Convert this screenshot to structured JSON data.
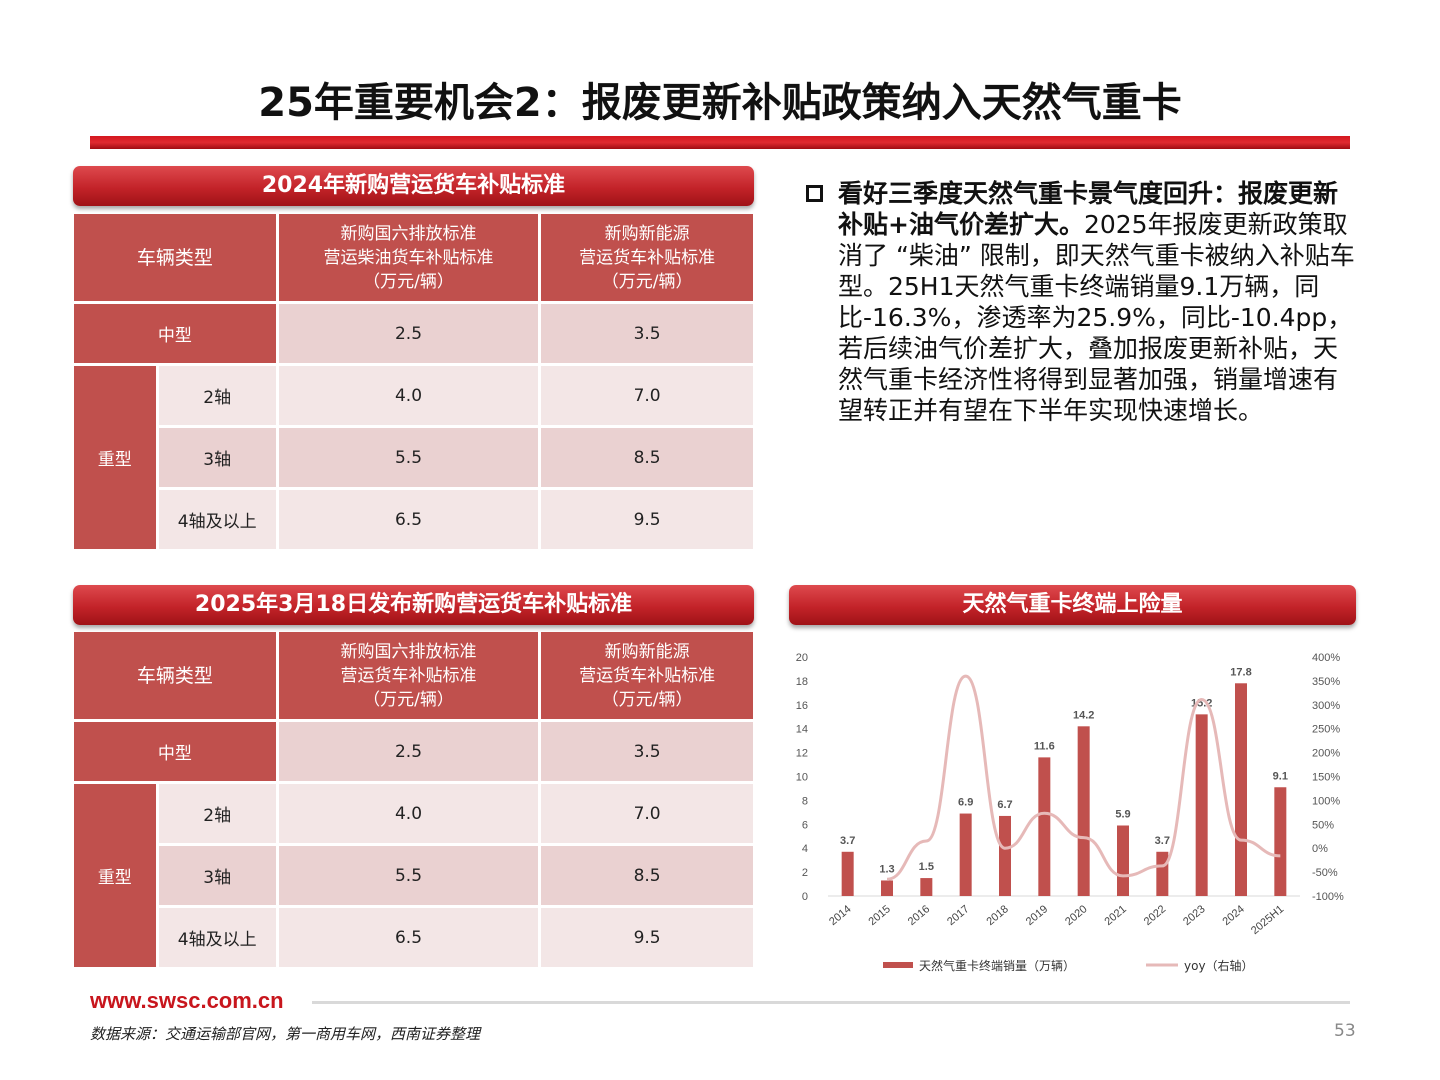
{
  "title": "25年重要机会2：报废更新补贴政策纳入天然气重卡",
  "table1": {
    "banner": "2024年新购营运货车补贴标准",
    "col0": "车辆类型",
    "col1": [
      "新购国六排放标准",
      "营运柴油货车补贴标准",
      "（万元/辆）"
    ],
    "col2": [
      "新购新能源",
      "营运货车补贴标准",
      "（万元/辆）"
    ],
    "rows": {
      "medium": {
        "label": "中型",
        "v1": "2.5",
        "v2": "3.5"
      },
      "heavy": "重型",
      "axle2": {
        "label": "2轴",
        "v1": "4.0",
        "v2": "7.0"
      },
      "axle3": {
        "label": "3轴",
        "v1": "5.5",
        "v2": "8.5"
      },
      "axle4": {
        "label": "4轴及以上",
        "v1": "6.5",
        "v2": "9.5"
      }
    }
  },
  "table2": {
    "banner": "2025年3月18日发布新购营运货车补贴标准",
    "col0": "车辆类型",
    "col1": [
      "新购国六排放标准",
      "营运货车补贴标准",
      "（万元/辆）"
    ],
    "col2": [
      "新购新能源",
      "营运货车补贴标准",
      "（万元/辆）"
    ],
    "rows": {
      "medium": {
        "label": "中型",
        "v1": "2.5",
        "v2": "3.5"
      },
      "heavy": "重型",
      "axle2": {
        "label": "2轴",
        "v1": "4.0",
        "v2": "7.0"
      },
      "axle3": {
        "label": "3轴",
        "v1": "5.5",
        "v2": "8.5"
      },
      "axle4": {
        "label": "4轴及以上",
        "v1": "6.5",
        "v2": "9.5"
      }
    }
  },
  "bullet": {
    "bold": "看好三季度天然气重卡景气度回升：报废更新补贴+油气价差扩大。",
    "text": "2025年报废更新政策取消了 “柴油” 限制，即天然气重卡被纳入补贴车型。25H1天然气重卡终端销量9.1万辆，同比-16.3%，渗透率为25.9%，同比-10.4pp，若后续油气价差扩大，叠加报废更新补贴，天然气重卡经济性将得到显著加强，销量增速有望转正并有望在下半年实现快速增长。"
  },
  "chart_banner": "天然气重卡终端上险量",
  "chart_data": {
    "type": "bar",
    "categories": [
      "2014",
      "2015",
      "2016",
      "2017",
      "2018",
      "2019",
      "2020",
      "2021",
      "2022",
      "2023",
      "2024",
      "2025H1"
    ],
    "series": [
      {
        "name": "天然气重卡终端销量（万辆）",
        "type": "bar",
        "axis": "left",
        "values": [
          3.7,
          1.3,
          1.5,
          6.9,
          6.7,
          11.6,
          14.2,
          5.9,
          3.7,
          15.2,
          17.8,
          9.1
        ],
        "labels": [
          "3.7",
          "1.3",
          "1.5",
          "6.9",
          "6.7",
          "11.6",
          "14.2",
          "5.9",
          "3.7",
          "15.2",
          "17.8",
          "9.1"
        ],
        "color": "#c0504d"
      },
      {
        "name": "yoy（右轴）",
        "type": "line",
        "axis": "right",
        "values": [
          null,
          -65,
          15,
          360,
          0,
          73,
          22,
          -58,
          -37,
          311,
          17,
          -16
        ],
        "color": "#e6b9b8"
      }
    ],
    "ylim": [
      0,
      20
    ],
    "yticks": [
      "0",
      "2",
      "4",
      "6",
      "8",
      "10",
      "12",
      "14",
      "16",
      "18",
      "20"
    ],
    "y2lim": [
      -100,
      400
    ],
    "y2ticks": [
      "-100%",
      "-50%",
      "0%",
      "50%",
      "100%",
      "150%",
      "200%",
      "250%",
      "300%",
      "350%",
      "400%"
    ],
    "grid": false,
    "legend": "bottom"
  },
  "footer": {
    "url": "www.swsc.com.cn",
    "source": "数据来源：交通运输部官网，第一商用车网，西南证券整理",
    "page": "53"
  }
}
